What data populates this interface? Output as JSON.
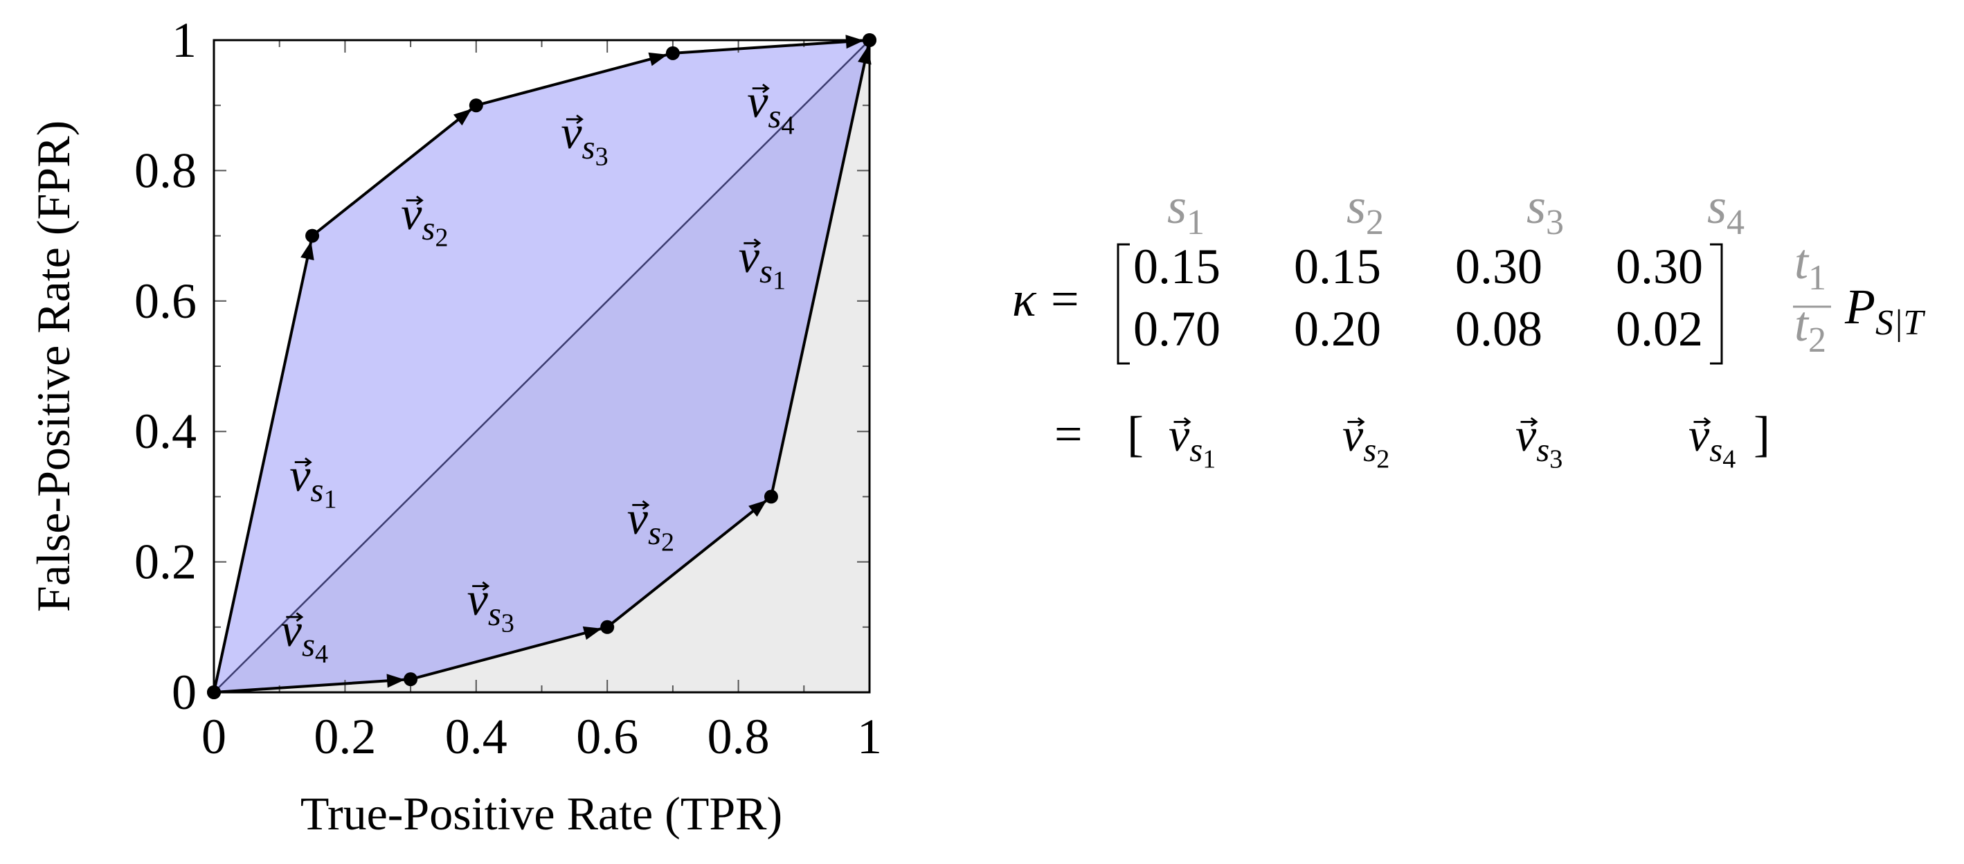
{
  "chart_data": {
    "type": "line",
    "xlabel": "True-Positive Rate (TPR)",
    "ylabel": "False-Positive Rate (FPR)",
    "xlim": [
      0,
      1
    ],
    "ylim": [
      0,
      1
    ],
    "xticks": [
      0,
      0.2,
      0.4,
      0.6,
      0.8,
      1
    ],
    "yticks": [
      0,
      0.2,
      0.4,
      0.6,
      0.8,
      1
    ],
    "xminorticks": [
      0.1,
      0.3,
      0.5,
      0.7,
      0.9
    ],
    "yminorticks": [
      0.1,
      0.3,
      0.5,
      0.7,
      0.9
    ],
    "grid": false,
    "area_color": "#c8c8fb",
    "overlap_color": "#bdbdf2",
    "background_color": "#ebebeb",
    "segment_label": {
      "base": "v",
      "sub": "s"
    },
    "series": [
      {
        "color": "#000000",
        "x": [
          0,
          0.15,
          0.4,
          0.7,
          1
        ],
        "values": [
          0,
          0.7,
          0.9,
          0.98,
          1
        ],
        "labels": [
          "1",
          "2",
          "3",
          "4"
        ]
      },
      {
        "color": "#000000",
        "x": [
          0,
          0.3,
          0.6,
          0.85,
          1
        ],
        "values": [
          0,
          0.02,
          0.1,
          0.3,
          1
        ],
        "labels": [
          "4",
          "3",
          "2",
          "1"
        ]
      },
      {
        "color": "#3c3c70",
        "x": [
          0,
          1
        ],
        "values": [
          0,
          1
        ]
      }
    ]
  },
  "matrix": {
    "symbol": "κ",
    "equals": "=",
    "column_symbol": "s",
    "columns": [
      "1",
      "2",
      "3",
      "4"
    ],
    "row_symbol": "t",
    "rows": [
      "1",
      "2"
    ],
    "values": [
      [
        "0.15",
        "0.15",
        "0.30",
        "0.30"
      ],
      [
        "0.70",
        "0.20",
        "0.08",
        "0.02"
      ]
    ],
    "annotation": {
      "base": "P",
      "sub": "S|T"
    },
    "open": "[",
    "close": "]",
    "vector": {
      "base": "v",
      "sub": "s"
    },
    "vectors": [
      "1",
      "2",
      "3",
      "4"
    ]
  }
}
